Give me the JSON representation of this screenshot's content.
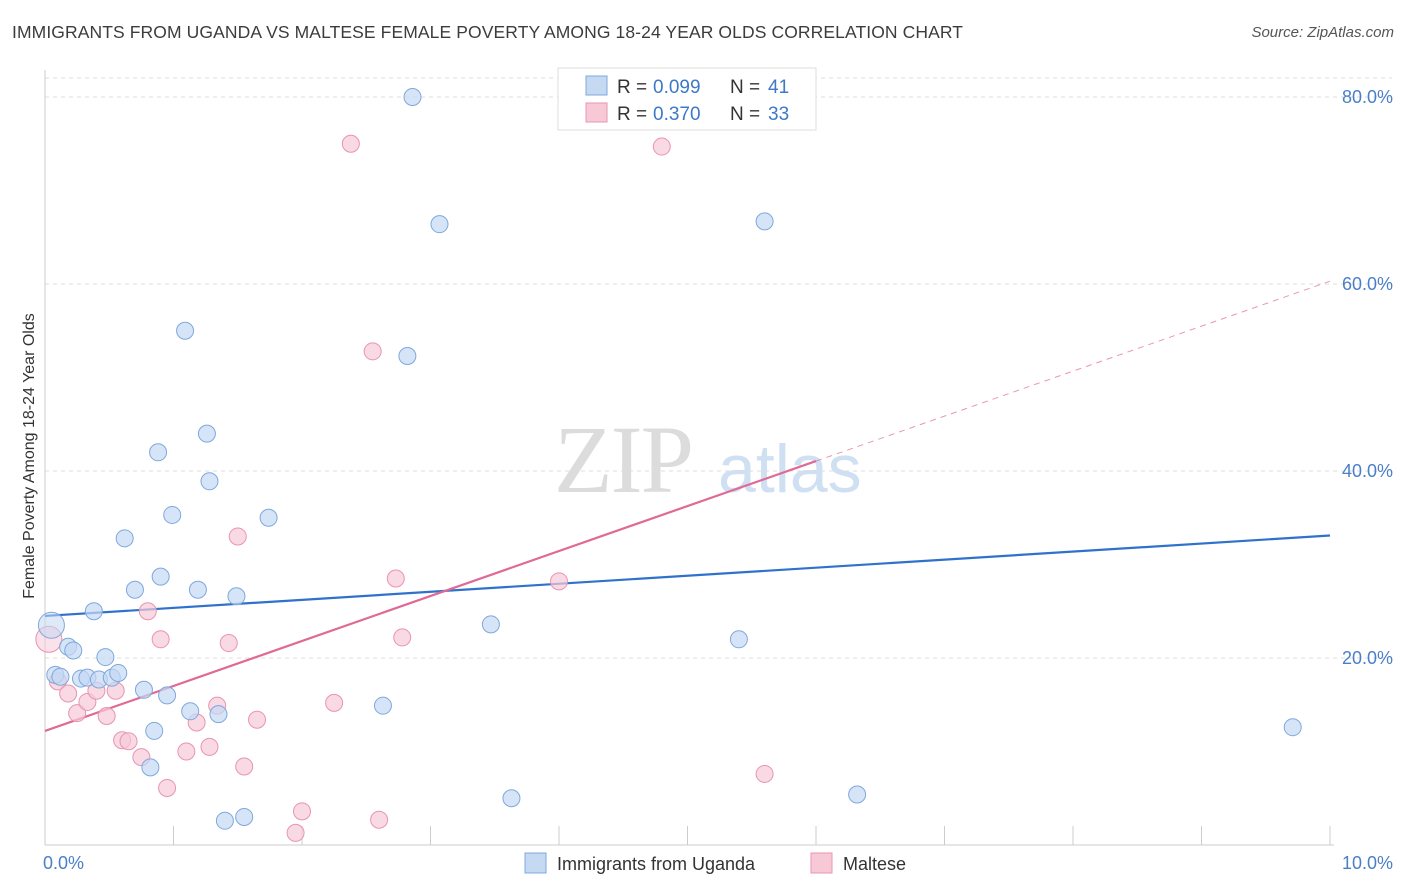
{
  "header": {
    "title": "IMMIGRANTS FROM UGANDA VS MALTESE FEMALE POVERTY AMONG 18-24 YEAR OLDS CORRELATION CHART",
    "source": "Source: ZipAtlas.com"
  },
  "watermark": {
    "zip": "ZIP",
    "atlas": "atlas"
  },
  "legend": {
    "series": [
      {
        "r_label": "R =",
        "r_value": "0.099",
        "n_label": "N =",
        "n_value": "41"
      },
      {
        "r_label": "R =",
        "r_value": "0.370",
        "n_label": "N =",
        "n_value": "33"
      }
    ]
  },
  "colors": {
    "uganda_fill": "#c5d9f3",
    "uganda_stroke": "#7fa8dc",
    "uganda_line": "#2f72cc",
    "maltese_fill": "#f7c9d7",
    "maltese_stroke": "#e895b0",
    "maltese_line": "#e06a95",
    "grid": "#dddddd",
    "tick_label": "#4a7fc8"
  },
  "chart_data": {
    "type": "scatter",
    "title": "IMMIGRANTS FROM UGANDA VS MALTESE FEMALE POVERTY AMONG 18-24 YEAR OLDS CORRELATION CHART",
    "xlabel": "",
    "ylabel": "Female Poverty Among 18-24 Year Olds",
    "xlim": [
      0,
      10
    ],
    "ylim": [
      0,
      80
    ],
    "x_tick_labels": [
      "0.0%",
      "10.0%"
    ],
    "y_ticks": [
      20,
      40,
      60,
      80
    ],
    "y_tick_labels": [
      "20.0%",
      "40.0%",
      "60.0%",
      "80.0%"
    ],
    "grid": true,
    "series": [
      {
        "name": "Immigrants from Uganda",
        "r": 0.099,
        "n": 41,
        "trend": {
          "x": [
            0,
            10
          ],
          "y": [
            24.5,
            33.1
          ],
          "dashed_from": null
        },
        "points": [
          [
            0.05,
            23.5
          ],
          [
            0.08,
            18.2
          ],
          [
            0.12,
            18.0
          ],
          [
            0.18,
            21.2
          ],
          [
            0.22,
            20.8
          ],
          [
            0.28,
            17.8
          ],
          [
            0.33,
            17.9
          ],
          [
            0.38,
            25.0
          ],
          [
            0.42,
            17.7
          ],
          [
            0.47,
            20.1
          ],
          [
            0.52,
            17.9
          ],
          [
            0.57,
            18.4
          ],
          [
            0.62,
            32.8
          ],
          [
            0.7,
            27.3
          ],
          [
            0.77,
            16.6
          ],
          [
            0.82,
            8.3
          ],
          [
            0.85,
            12.2
          ],
          [
            0.88,
            42.0
          ],
          [
            0.9,
            28.7
          ],
          [
            0.95,
            16.0
          ],
          [
            0.99,
            35.3
          ],
          [
            1.09,
            55.0
          ],
          [
            1.13,
            14.3
          ],
          [
            1.19,
            27.3
          ],
          [
            1.26,
            44.0
          ],
          [
            1.28,
            38.9
          ],
          [
            1.35,
            14.0
          ],
          [
            1.4,
            2.6
          ],
          [
            1.49,
            26.6
          ],
          [
            1.55,
            3.0
          ],
          [
            1.74,
            35.0
          ],
          [
            2.63,
            14.9
          ],
          [
            2.82,
            52.3
          ],
          [
            2.86,
            80.0
          ],
          [
            3.07,
            66.4
          ],
          [
            3.47,
            23.6
          ],
          [
            3.63,
            5.0
          ],
          [
            5.4,
            22.0
          ],
          [
            5.6,
            66.7
          ],
          [
            6.32,
            5.4
          ],
          [
            9.71,
            12.6
          ]
        ]
      },
      {
        "name": "Maltese",
        "r": 0.37,
        "n": 33,
        "trend": {
          "x": [
            0,
            10
          ],
          "y": [
            12.2,
            60.3
          ],
          "dashed_from": 6.0
        },
        "points": [
          [
            0.03,
            22.0
          ],
          [
            0.1,
            17.5
          ],
          [
            0.18,
            16.2
          ],
          [
            0.25,
            14.1
          ],
          [
            0.33,
            15.3
          ],
          [
            0.4,
            16.5
          ],
          [
            0.48,
            13.8
          ],
          [
            0.55,
            16.5
          ],
          [
            0.6,
            11.2
          ],
          [
            0.65,
            11.1
          ],
          [
            0.75,
            9.4
          ],
          [
            0.8,
            25.0
          ],
          [
            0.9,
            22.0
          ],
          [
            0.95,
            6.1
          ],
          [
            1.1,
            10.0
          ],
          [
            1.18,
            13.1
          ],
          [
            1.28,
            10.5
          ],
          [
            1.34,
            14.9
          ],
          [
            1.43,
            21.6
          ],
          [
            1.5,
            33.0
          ],
          [
            1.55,
            8.4
          ],
          [
            1.65,
            13.4
          ],
          [
            1.95,
            1.3
          ],
          [
            2.0,
            3.6
          ],
          [
            2.25,
            15.2
          ],
          [
            2.38,
            75.0
          ],
          [
            2.55,
            52.8
          ],
          [
            2.6,
            2.7
          ],
          [
            2.73,
            28.5
          ],
          [
            2.78,
            22.2
          ],
          [
            4.0,
            28.2
          ],
          [
            4.8,
            74.7
          ],
          [
            5.6,
            7.6
          ]
        ]
      }
    ]
  },
  "bottom_legend": {
    "items": [
      {
        "label": "Immigrants from Uganda"
      },
      {
        "label": "Maltese"
      }
    ]
  }
}
